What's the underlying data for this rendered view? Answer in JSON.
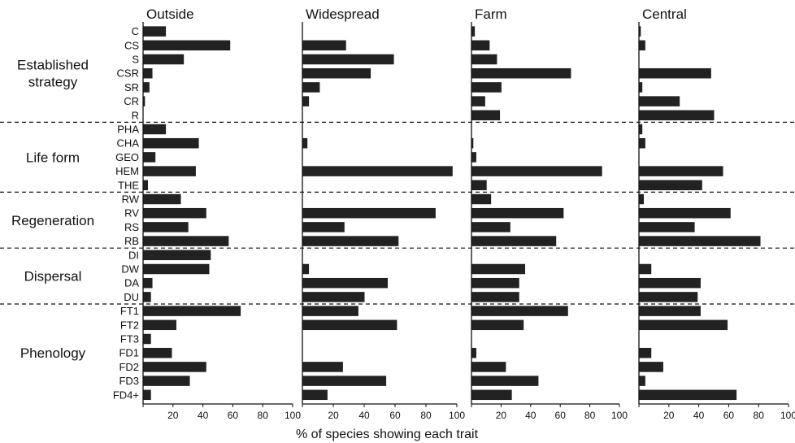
{
  "chart_data": {
    "type": "bar",
    "orientation": "horizontal",
    "xlabel": "% of species showing each trait",
    "xlim": [
      0,
      100
    ],
    "xticks": [
      "20",
      "40",
      "60",
      "80",
      "100"
    ],
    "bar_color": "#222222",
    "groups": [
      {
        "label": "Established strategy",
        "rows": [
          "C",
          "CS",
          "S",
          "CSR",
          "SR",
          "CR",
          "R"
        ]
      },
      {
        "label": "Life form",
        "rows": [
          "PHA",
          "CHA",
          "GEO",
          "HEM",
          "THE"
        ]
      },
      {
        "label": "Regeneration",
        "rows": [
          "RW",
          "RV",
          "RS",
          "RB"
        ]
      },
      {
        "label": "Dispersal",
        "rows": [
          "DI",
          "DW",
          "DA",
          "DU"
        ]
      },
      {
        "label": "Phenology",
        "rows": [
          "FT1",
          "FT2",
          "FT3",
          "FD1",
          "FD2",
          "FD3",
          "FD4+"
        ]
      }
    ],
    "categories": [
      "C",
      "CS",
      "S",
      "CSR",
      "SR",
      "CR",
      "R",
      "PHA",
      "CHA",
      "GEO",
      "HEM",
      "THE",
      "RW",
      "RV",
      "RS",
      "RB",
      "DI",
      "DW",
      "DA",
      "DU",
      "FT1",
      "FT2",
      "FT3",
      "FD1",
      "FD2",
      "FD3",
      "FD4+"
    ],
    "series": [
      {
        "name": "Outside",
        "values": [
          15,
          58,
          27,
          6,
          4,
          1,
          0,
          15,
          37,
          8,
          35,
          3,
          25,
          42,
          30,
          57,
          45,
          44,
          6,
          5,
          65,
          22,
          5,
          19,
          42,
          31,
          5
        ]
      },
      {
        "name": "Widespread",
        "values": [
          0,
          28,
          59,
          44,
          11,
          4,
          0,
          0,
          3,
          0,
          97,
          0,
          0,
          86,
          27,
          62,
          0,
          4,
          55,
          40,
          36,
          61,
          0,
          0,
          26,
          54,
          16
        ]
      },
      {
        "name": "Farm",
        "values": [
          2,
          12,
          17,
          67,
          20,
          9,
          19,
          0,
          1,
          3,
          88,
          10,
          13,
          62,
          26,
          57,
          0,
          36,
          32,
          32,
          65,
          35,
          0,
          3,
          23,
          45,
          27
        ]
      },
      {
        "name": "Central",
        "values": [
          1,
          4,
          0,
          48,
          2,
          27,
          50,
          2,
          4,
          0,
          56,
          42,
          3,
          61,
          37,
          81,
          0,
          8,
          41,
          39,
          41,
          59,
          0,
          8,
          16,
          4,
          65
        ]
      }
    ]
  }
}
